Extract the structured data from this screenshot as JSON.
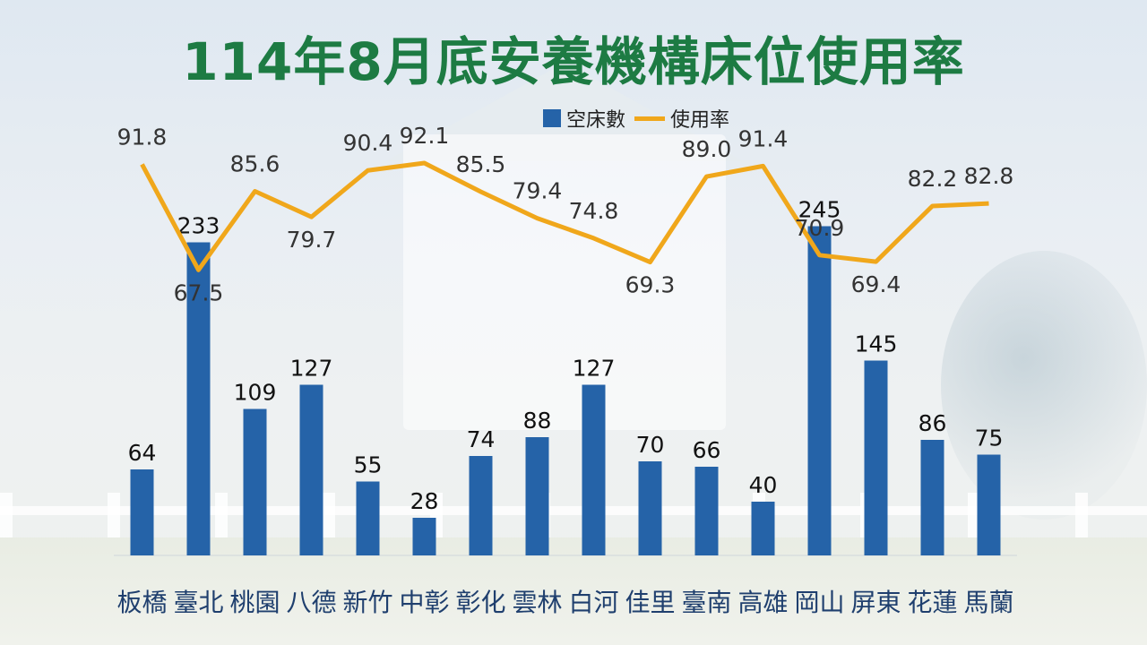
{
  "page": {
    "title": "114年8月底安養機構床位使用率"
  },
  "chart_data": {
    "type": "bar",
    "title": "114年8月底安養機構床位使用率",
    "categories": [
      "板橋",
      "臺北",
      "桃園",
      "八德",
      "新竹",
      "中彰",
      "彰化",
      "雲林",
      "白河",
      "佳里",
      "臺南",
      "高雄",
      "岡山",
      "屏東",
      "花蓮",
      "馬蘭"
    ],
    "series": [
      {
        "name": "空床數",
        "type": "bar",
        "color": "#2563a8",
        "values": [
          64,
          233,
          109,
          127,
          55,
          28,
          74,
          88,
          127,
          70,
          66,
          40,
          245,
          145,
          86,
          75
        ]
      },
      {
        "name": "使用率",
        "type": "line",
        "color": "#f0a71b",
        "values": [
          91.8,
          67.5,
          85.6,
          79.7,
          90.4,
          92.1,
          85.5,
          79.4,
          74.8,
          69.3,
          89.0,
          91.4,
          70.9,
          69.4,
          82.2,
          82.8
        ]
      }
    ],
    "legend": "top-center",
    "grid": false
  },
  "colors": {
    "title": "#1d7b43",
    "bar": "#2563a8",
    "line": "#f0a71b",
    "category_label": "#1f3f6e"
  }
}
